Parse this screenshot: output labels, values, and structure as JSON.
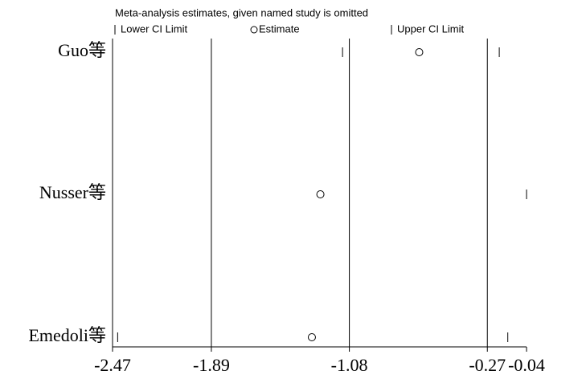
{
  "chart_data": {
    "type": "interval-dot",
    "legend_title": "Meta-analysis estimates, given named study is omitted",
    "categories": [
      "Guo等",
      "Nusser等",
      "Emedoli等"
    ],
    "series": [
      {
        "name": "Lower CI Limit",
        "marker": "tick",
        "color": "#000000",
        "values": [
          -1.12,
          -2.47,
          -2.44
        ]
      },
      {
        "name": "Estimate",
        "marker": "circle",
        "color": "#000000",
        "values": [
          -0.67,
          -1.25,
          -1.3
        ]
      },
      {
        "name": "Upper CI Limit",
        "marker": "tick",
        "color": "#000000",
        "values": [
          -0.2,
          -0.04,
          -0.15
        ]
      }
    ],
    "xlim": [
      -2.47,
      -0.04
    ],
    "xticks": [
      -2.47,
      -1.89,
      -1.08,
      -0.27,
      -0.04
    ],
    "grid_ticks": [
      -1.89,
      -1.08,
      -0.27
    ],
    "grid": true
  }
}
